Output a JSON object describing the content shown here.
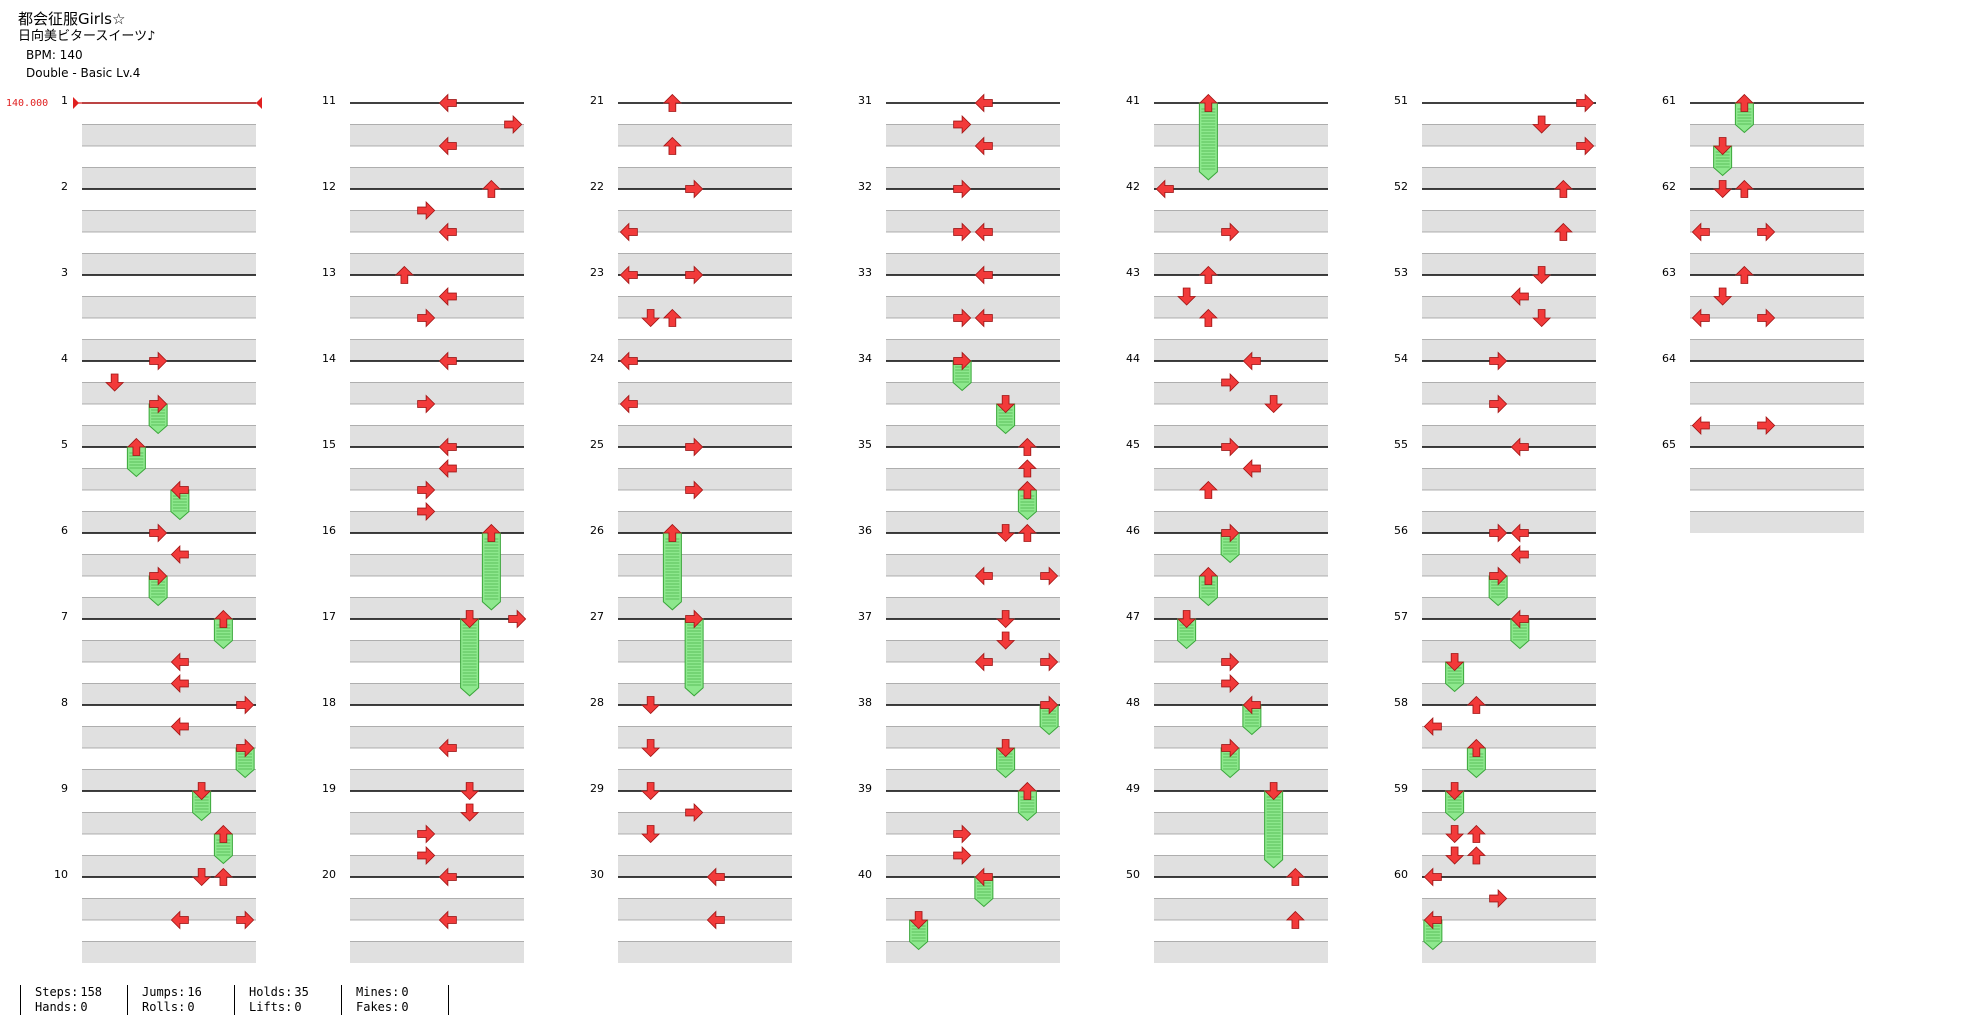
{
  "header": {
    "title": "都会征服Girls☆",
    "subtitle": "日向美ビタースイーツ♪",
    "bpm_text": "BPM: 140",
    "difficulty_text": "Double - Basic  Lv.4"
  },
  "bpm_marker": "140.000",
  "colors": {
    "arrow": "#f23a3a",
    "hold": "#8de88d",
    "lane_alt": "#e0e0e0"
  },
  "chart_data": {
    "type": "step-chart",
    "lanes": 8,
    "measures": [
      {
        "n": "1",
        "notes": []
      },
      {
        "n": "2",
        "notes": []
      },
      {
        "n": "3",
        "notes": []
      },
      {
        "n": "4",
        "notes": [
          {
            "b": 0,
            "l": 3,
            "d": "R"
          },
          {
            "b": 1,
            "l": 1,
            "d": "D"
          },
          {
            "b": 2,
            "l": 3,
            "d": "R",
            "h": 1
          }
        ]
      },
      {
        "n": "5",
        "notes": [
          {
            "b": 0,
            "l": 2,
            "d": "U",
            "h": 1
          },
          {
            "b": 2,
            "l": 4,
            "d": "L",
            "h": 1
          }
        ]
      },
      {
        "n": "6",
        "notes": [
          {
            "b": 0,
            "l": 3,
            "d": "R"
          },
          {
            "b": 1,
            "l": 4,
            "d": "L"
          },
          {
            "b": 2,
            "l": 3,
            "d": "R",
            "h": 1
          }
        ]
      },
      {
        "n": "7",
        "notes": [
          {
            "b": 0,
            "l": 6,
            "d": "U",
            "h": 1
          },
          {
            "b": 2,
            "l": 4,
            "d": "L"
          },
          {
            "b": 3,
            "l": 4,
            "d": "L"
          }
        ]
      },
      {
        "n": "8",
        "notes": [
          {
            "b": 0,
            "l": 7,
            "d": "R"
          },
          {
            "b": 1,
            "l": 4,
            "d": "L"
          },
          {
            "b": 2,
            "l": 7,
            "d": "R",
            "h": 1
          }
        ]
      },
      {
        "n": "9",
        "notes": [
          {
            "b": 0,
            "l": 5,
            "d": "D",
            "h": 1
          },
          {
            "b": 2,
            "l": 6,
            "d": "U",
            "h": 1
          }
        ]
      },
      {
        "n": "10",
        "notes": [
          {
            "b": 0,
            "l": 5,
            "d": "D"
          },
          {
            "b": 0,
            "l": 6,
            "d": "U"
          },
          {
            "b": 2,
            "l": 4,
            "d": "L"
          },
          {
            "b": 2,
            "l": 7,
            "d": "R"
          }
        ]
      },
      {
        "n": "11",
        "notes": [
          {
            "b": 0,
            "l": 4,
            "d": "L"
          },
          {
            "b": 1,
            "l": 7,
            "d": "R"
          },
          {
            "b": 2,
            "l": 4,
            "d": "L"
          }
        ]
      },
      {
        "n": "12",
        "notes": [
          {
            "b": 0,
            "l": 6,
            "d": "U"
          },
          {
            "b": 1,
            "l": 3,
            "d": "R"
          },
          {
            "b": 2,
            "l": 4,
            "d": "L"
          }
        ]
      },
      {
        "n": "13",
        "notes": [
          {
            "b": 0,
            "l": 2,
            "d": "U"
          },
          {
            "b": 1,
            "l": 4,
            "d": "L"
          },
          {
            "b": 2,
            "l": 3,
            "d": "R"
          }
        ]
      },
      {
        "n": "14",
        "notes": [
          {
            "b": 0,
            "l": 4,
            "d": "L"
          },
          {
            "b": 2,
            "l": 3,
            "d": "R"
          }
        ]
      },
      {
        "n": "15",
        "notes": [
          {
            "b": 0,
            "l": 4,
            "d": "L"
          },
          {
            "b": 1,
            "l": 4,
            "d": "L"
          },
          {
            "b": 2,
            "l": 3,
            "d": "R"
          },
          {
            "b": 3,
            "l": 3,
            "d": "R"
          }
        ]
      },
      {
        "n": "16",
        "notes": [
          {
            "b": 0,
            "l": 6,
            "d": "U",
            "h": 3.2
          }
        ]
      },
      {
        "n": "17",
        "notes": [
          {
            "b": 0,
            "l": 5,
            "d": "D",
            "h": 3.2
          },
          {
            "b": 0,
            "l": 7,
            "d": "R",
            "o": 4
          }
        ]
      },
      {
        "n": "18",
        "notes": [
          {
            "b": 2,
            "l": 4,
            "d": "L"
          }
        ]
      },
      {
        "n": "19",
        "notes": [
          {
            "b": 0,
            "l": 5,
            "d": "D"
          },
          {
            "b": 1,
            "l": 5,
            "d": "D"
          },
          {
            "b": 2,
            "l": 3,
            "d": "R"
          },
          {
            "b": 3,
            "l": 3,
            "d": "R"
          }
        ]
      },
      {
        "n": "20",
        "notes": [
          {
            "b": 0,
            "l": 4,
            "d": "L"
          },
          {
            "b": 2,
            "l": 4,
            "d": "L"
          }
        ]
      },
      {
        "n": "21",
        "notes": [
          {
            "b": 0,
            "l": 2,
            "d": "U"
          },
          {
            "b": 2,
            "l": 2,
            "d": "U"
          }
        ]
      },
      {
        "n": "22",
        "notes": [
          {
            "b": 0,
            "l": 3,
            "d": "R"
          },
          {
            "b": 2,
            "l": 0,
            "d": "L"
          }
        ]
      },
      {
        "n": "23",
        "notes": [
          {
            "b": 0,
            "l": 0,
            "d": "L"
          },
          {
            "b": 0,
            "l": 3,
            "d": "R"
          },
          {
            "b": 2,
            "l": 1,
            "d": "D"
          },
          {
            "b": 2,
            "l": 2,
            "d": "U"
          }
        ]
      },
      {
        "n": "24",
        "notes": [
          {
            "b": 0,
            "l": 0,
            "d": "L"
          },
          {
            "b": 2,
            "l": 0,
            "d": "L"
          }
        ]
      },
      {
        "n": "25",
        "notes": [
          {
            "b": 0,
            "l": 3,
            "d": "R"
          },
          {
            "b": 2,
            "l": 3,
            "d": "R"
          }
        ]
      },
      {
        "n": "26",
        "notes": [
          {
            "b": 0,
            "l": 2,
            "d": "U",
            "h": 3.2
          }
        ]
      },
      {
        "n": "27",
        "notes": [
          {
            "b": 0,
            "l": 3,
            "d": "R",
            "h": 3.2
          }
        ]
      },
      {
        "n": "28",
        "notes": [
          {
            "b": 0,
            "l": 1,
            "d": "D"
          },
          {
            "b": 2,
            "l": 1,
            "d": "D"
          }
        ]
      },
      {
        "n": "29",
        "notes": [
          {
            "b": 0,
            "l": 1,
            "d": "D"
          },
          {
            "b": 1,
            "l": 3,
            "d": "R"
          },
          {
            "b": 2,
            "l": 1,
            "d": "D"
          }
        ]
      },
      {
        "n": "30",
        "notes": [
          {
            "b": 0,
            "l": 4,
            "d": "L"
          },
          {
            "b": 2,
            "l": 4,
            "d": "L"
          }
        ]
      },
      {
        "n": "31",
        "notes": [
          {
            "b": 0,
            "l": 4,
            "d": "L"
          },
          {
            "b": 1,
            "l": 3,
            "d": "R"
          },
          {
            "b": 2,
            "l": 4,
            "d": "L"
          }
        ]
      },
      {
        "n": "32",
        "notes": [
          {
            "b": 0,
            "l": 3,
            "d": "R"
          },
          {
            "b": 2,
            "l": 3,
            "d": "R"
          },
          {
            "b": 2,
            "l": 4,
            "d": "L"
          }
        ]
      },
      {
        "n": "33",
        "notes": [
          {
            "b": 0,
            "l": 4,
            "d": "L"
          },
          {
            "b": 2,
            "l": 3,
            "d": "R"
          },
          {
            "b": 2,
            "l": 4,
            "d": "L"
          }
        ]
      },
      {
        "n": "34",
        "notes": [
          {
            "b": 0,
            "l": 3,
            "d": "R",
            "h": 1
          },
          {
            "b": 2,
            "l": 5,
            "d": "D",
            "h": 1
          }
        ]
      },
      {
        "n": "35",
        "notes": [
          {
            "b": 0,
            "l": 6,
            "d": "U"
          },
          {
            "b": 1,
            "l": 6,
            "d": "U"
          },
          {
            "b": 2,
            "l": 6,
            "d": "U",
            "h": 1
          }
        ]
      },
      {
        "n": "36",
        "notes": [
          {
            "b": 0,
            "l": 5,
            "d": "D"
          },
          {
            "b": 0,
            "l": 6,
            "d": "U"
          },
          {
            "b": 2,
            "l": 4,
            "d": "L"
          },
          {
            "b": 2,
            "l": 7,
            "d": "R"
          }
        ]
      },
      {
        "n": "37",
        "notes": [
          {
            "b": 0,
            "l": 5,
            "d": "D"
          },
          {
            "b": 1,
            "l": 5,
            "d": "D"
          },
          {
            "b": 2,
            "l": 4,
            "d": "L"
          },
          {
            "b": 2,
            "l": 7,
            "d": "R"
          }
        ]
      },
      {
        "n": "38",
        "notes": [
          {
            "b": 0,
            "l": 7,
            "d": "R",
            "h": 1
          },
          {
            "b": 2,
            "l": 5,
            "d": "D",
            "h": 1
          }
        ]
      },
      {
        "n": "39",
        "notes": [
          {
            "b": 0,
            "l": 6,
            "d": "U",
            "h": 1
          },
          {
            "b": 2,
            "l": 3,
            "d": "R"
          },
          {
            "b": 3,
            "l": 3,
            "d": "R"
          }
        ]
      },
      {
        "n": "40",
        "notes": [
          {
            "b": 0,
            "l": 4,
            "d": "L",
            "h": 1
          },
          {
            "b": 2,
            "l": 1,
            "d": "D",
            "h": 1
          }
        ]
      },
      {
        "n": "41",
        "notes": [
          {
            "b": 0,
            "l": 2,
            "d": "U",
            "h": 3.2
          }
        ]
      },
      {
        "n": "42",
        "notes": [
          {
            "b": 0,
            "l": 0,
            "d": "L"
          },
          {
            "b": 2,
            "l": 3,
            "d": "R"
          }
        ]
      },
      {
        "n": "43",
        "notes": [
          {
            "b": 0,
            "l": 2,
            "d": "U"
          },
          {
            "b": 1,
            "l": 1,
            "d": "D"
          },
          {
            "b": 2,
            "l": 2,
            "d": "U"
          }
        ]
      },
      {
        "n": "44",
        "notes": [
          {
            "b": 0,
            "l": 4,
            "d": "L"
          },
          {
            "b": 1,
            "l": 3,
            "d": "R"
          },
          {
            "b": 2,
            "l": 5,
            "d": "D"
          }
        ]
      },
      {
        "n": "45",
        "notes": [
          {
            "b": 0,
            "l": 3,
            "d": "R"
          },
          {
            "b": 1,
            "l": 4,
            "d": "L"
          },
          {
            "b": 2,
            "l": 2,
            "d": "U"
          }
        ]
      },
      {
        "n": "46",
        "notes": [
          {
            "b": 0,
            "l": 3,
            "d": "R",
            "h": 1
          },
          {
            "b": 2,
            "l": 2,
            "d": "U",
            "h": 1
          }
        ]
      },
      {
        "n": "47",
        "notes": [
          {
            "b": 0,
            "l": 1,
            "d": "D",
            "h": 1
          },
          {
            "b": 2,
            "l": 3,
            "d": "R"
          },
          {
            "b": 3,
            "l": 3,
            "d": "R"
          }
        ]
      },
      {
        "n": "48",
        "notes": [
          {
            "b": 0,
            "l": 4,
            "d": "L",
            "h": 1
          },
          {
            "b": 2,
            "l": 3,
            "d": "R",
            "h": 1
          }
        ]
      },
      {
        "n": "49",
        "notes": [
          {
            "b": 0,
            "l": 5,
            "d": "D",
            "h": 3.2
          }
        ]
      },
      {
        "n": "50",
        "notes": [
          {
            "b": 0,
            "l": 6,
            "d": "U"
          },
          {
            "b": 2,
            "l": 6,
            "d": "U"
          }
        ]
      },
      {
        "n": "51",
        "notes": [
          {
            "b": 0,
            "l": 7,
            "d": "R"
          },
          {
            "b": 1,
            "l": 5,
            "d": "D"
          },
          {
            "b": 2,
            "l": 7,
            "d": "R"
          }
        ]
      },
      {
        "n": "52",
        "notes": [
          {
            "b": 0,
            "l": 6,
            "d": "U"
          },
          {
            "b": 2,
            "l": 6,
            "d": "U"
          }
        ]
      },
      {
        "n": "53",
        "notes": [
          {
            "b": 0,
            "l": 5,
            "d": "D"
          },
          {
            "b": 1,
            "l": 4,
            "d": "L"
          },
          {
            "b": 2,
            "l": 5,
            "d": "D"
          }
        ]
      },
      {
        "n": "54",
        "notes": [
          {
            "b": 0,
            "l": 3,
            "d": "R"
          },
          {
            "b": 2,
            "l": 3,
            "d": "R"
          }
        ]
      },
      {
        "n": "55",
        "notes": [
          {
            "b": 0,
            "l": 4,
            "d": "L"
          }
        ]
      },
      {
        "n": "56",
        "notes": [
          {
            "b": 0,
            "l": 3,
            "d": "R"
          },
          {
            "b": 0,
            "l": 4,
            "d": "L"
          },
          {
            "b": 1,
            "l": 4,
            "d": "L"
          },
          {
            "b": 2,
            "l": 3,
            "d": "R",
            "h": 1
          }
        ]
      },
      {
        "n": "57",
        "notes": [
          {
            "b": 0,
            "l": 4,
            "d": "L",
            "h": 1
          },
          {
            "b": 2,
            "l": 1,
            "d": "D",
            "h": 1
          }
        ]
      },
      {
        "n": "58",
        "notes": [
          {
            "b": 0,
            "l": 2,
            "d": "U"
          },
          {
            "b": 1,
            "l": 0,
            "d": "L"
          },
          {
            "b": 2,
            "l": 2,
            "d": "U",
            "h": 1
          }
        ]
      },
      {
        "n": "59",
        "notes": [
          {
            "b": 0,
            "l": 1,
            "d": "D",
            "h": 1
          },
          {
            "b": 2,
            "l": 1,
            "d": "D"
          },
          {
            "b": 2,
            "l": 2,
            "d": "U"
          },
          {
            "b": 3,
            "l": 1,
            "d": "D"
          },
          {
            "b": 3,
            "l": 2,
            "d": "U"
          }
        ]
      },
      {
        "n": "60",
        "notes": [
          {
            "b": 0,
            "l": 0,
            "d": "L"
          },
          {
            "b": 1,
            "l": 3,
            "d": "R"
          },
          {
            "b": 2,
            "l": 0,
            "d": "L",
            "h": 1
          }
        ]
      },
      {
        "n": "61",
        "notes": [
          {
            "b": 0,
            "l": 2,
            "d": "U",
            "h": 1
          },
          {
            "b": 2,
            "l": 1,
            "d": "D",
            "h": 1
          }
        ]
      },
      {
        "n": "62",
        "notes": [
          {
            "b": 0,
            "l": 1,
            "d": "D"
          },
          {
            "b": 0,
            "l": 2,
            "d": "U"
          },
          {
            "b": 2,
            "l": 0,
            "d": "L"
          },
          {
            "b": 2,
            "l": 3,
            "d": "R"
          }
        ]
      },
      {
        "n": "63",
        "notes": [
          {
            "b": 0,
            "l": 2,
            "d": "U"
          },
          {
            "b": 1,
            "l": 1,
            "d": "D"
          },
          {
            "b": 2,
            "l": 0,
            "d": "L"
          },
          {
            "b": 2,
            "l": 3,
            "d": "R"
          }
        ]
      },
      {
        "n": "64",
        "notes": [
          {
            "b": 3,
            "l": 0,
            "d": "L"
          },
          {
            "b": 3,
            "l": 3,
            "d": "R"
          }
        ]
      },
      {
        "n": "65",
        "notes": []
      }
    ]
  },
  "stats": [
    {
      "a_label": "Steps:",
      "a_value": "158",
      "b_label": "Hands:",
      "b_value": "0"
    },
    {
      "a_label": "Jumps:",
      "a_value": "16",
      "b_label": "Rolls:",
      "b_value": "0"
    },
    {
      "a_label": "Holds:",
      "a_value": "35",
      "b_label": "Lifts:",
      "b_value": "0"
    },
    {
      "a_label": "Mines:",
      "a_value": "0",
      "b_label": "Fakes:",
      "b_value": "0"
    }
  ]
}
